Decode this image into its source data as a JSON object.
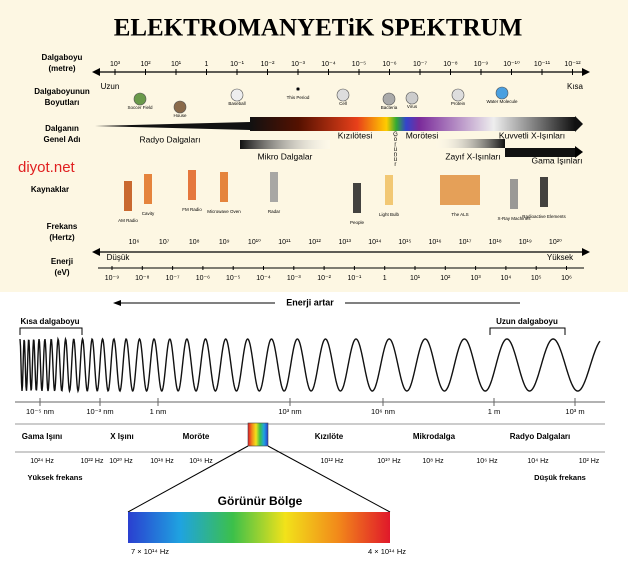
{
  "title": "ELEKTROMANYETiK SPEKTRUM",
  "wavelength": {
    "label": [
      "Dalgaboyu",
      "(metre)"
    ],
    "ticks": [
      "10³",
      "10²",
      "10¹",
      "1",
      "10⁻¹",
      "10⁻²",
      "10⁻³",
      "10⁻⁴",
      "10⁻⁵",
      "10⁻⁶",
      "10⁻⁷",
      "10⁻⁸",
      "10⁻⁹",
      "10⁻¹⁰",
      "10⁻¹¹",
      "10⁻¹²"
    ],
    "left": "Uzun",
    "right": "Kısa"
  },
  "sizes": {
    "label": [
      "Dalgaboyunun",
      "Boyutları"
    ],
    "items": [
      "Soccer Field",
      "House",
      "Baseball",
      "This Period",
      "Cell",
      "Bacteria",
      "Virus",
      "Protein",
      "Water Molecule"
    ]
  },
  "names": {
    "label": [
      "Dalganın",
      "Genel Adı"
    ],
    "items": [
      "Radyo Dalgaları",
      "Mikro Dalgalar",
      "Kızılötesi",
      "Görünür",
      "Morötesi",
      "Zayıf X-Işınları",
      "Kuvvetli X-Işınları",
      "Gama Işınları"
    ]
  },
  "watermark": "diyot.net",
  "sources": {
    "label": "Kaynaklar",
    "items": [
      "AM Radio",
      "Cavity",
      "FM Radio",
      "Microwave Oven",
      "Radar",
      "People",
      "Light Bulb",
      "The ALS",
      "X-Ray Machines",
      "Radioactive Elements"
    ]
  },
  "frequency": {
    "label": [
      "Frekans",
      "(Hertz)"
    ],
    "ticks": [
      "10⁶",
      "10⁷",
      "10⁸",
      "10⁹",
      "10¹⁰",
      "10¹¹",
      "10¹²",
      "10¹³",
      "10¹⁴",
      "10¹⁵",
      "10¹⁶",
      "10¹⁷",
      "10¹⁸",
      "10¹⁹",
      "10²⁰"
    ],
    "left": "Düşük",
    "right": "Yüksek"
  },
  "energy": {
    "label": [
      "Enerji",
      "(eV)"
    ],
    "ticks": [
      "10⁻⁹",
      "10⁻⁸",
      "10⁻⁷",
      "10⁻⁶",
      "10⁻⁵",
      "10⁻⁴",
      "10⁻³",
      "10⁻²",
      "10⁻¹",
      "1",
      "10¹",
      "10²",
      "10³",
      "10⁴",
      "10⁵",
      "10⁶"
    ]
  },
  "energy_arrow": "Enerji artar",
  "short_wave": "Kısa dalgaboyu",
  "long_wave": "Uzun dalgaboyu",
  "scale": [
    "10⁻⁵ nm",
    "10⁻³ nm",
    "1 nm",
    "10³ nm",
    "10⁶ nm",
    "1 m",
    "10³ m"
  ],
  "bands": [
    "Gama Işını",
    "X Işını",
    "Moröte",
    "Kızılöte",
    "Mikrodalga",
    "Radyo Dalgaları"
  ],
  "band_freqs": [
    "10²⁴ Hz",
    "10²² Hz",
    "10²⁰ Hz",
    "10¹⁸ Hz",
    "10¹⁶ Hz",
    "10¹² Hz",
    "10¹⁰ Hz",
    "10⁸ Hz",
    "10⁶ Hz",
    "10⁴ Hz",
    "10² Hz"
  ],
  "high_freq": "Yüksek frekans",
  "low_freq": "Düşük frekans",
  "visible": {
    "title": "Görünür Bölge",
    "left": "7 × 10¹⁴ Hz",
    "right": "4 × 10¹⁴ Hz"
  }
}
